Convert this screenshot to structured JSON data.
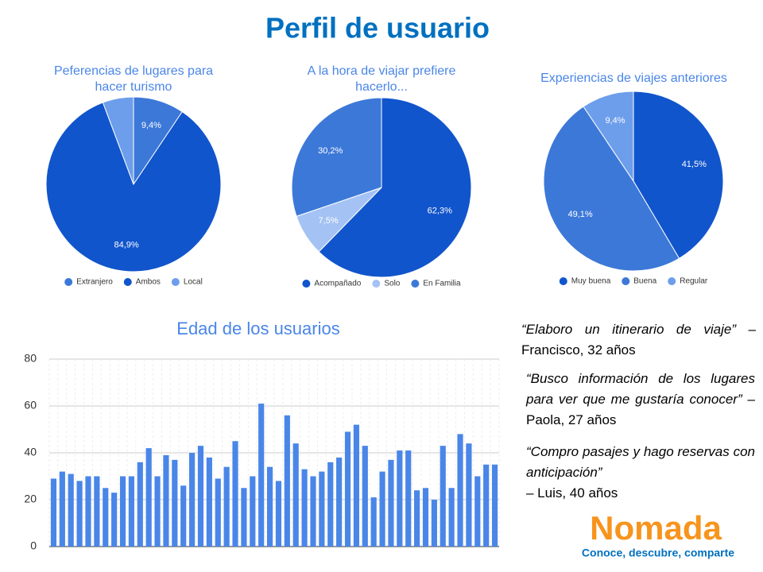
{
  "title": "Perfil de usuario",
  "chart_data": [
    {
      "type": "pie",
      "title": "Peferencias de lugares para hacer turismo",
      "categories": [
        "Extranjero",
        "Ambos",
        "Local"
      ],
      "values": [
        9.4,
        84.9,
        5.7
      ],
      "value_labels": [
        "9,4%",
        "84,9%",
        null
      ],
      "colors": [
        "#3c78d8",
        "#1155cc",
        "#6d9eeb"
      ]
    },
    {
      "type": "pie",
      "title": "A la hora de viajar prefiere hacerlo...",
      "categories": [
        "Acompañado",
        "Solo",
        "En Familia"
      ],
      "values": [
        62.3,
        7.5,
        30.2
      ],
      "value_labels": [
        "62,3%",
        "7,5%",
        "30,2%"
      ],
      "colors": [
        "#1155cc",
        "#a4c2f4",
        "#3c78d8"
      ]
    },
    {
      "type": "pie",
      "title": "Experiencias de viajes anteriores",
      "categories": [
        "Muy buena",
        "Buena",
        "Regular"
      ],
      "values": [
        41.5,
        49.1,
        9.4
      ],
      "value_labels": [
        "41,5%",
        "49,1%",
        "9,4%"
      ],
      "colors": [
        "#1155cc",
        "#3c78d8",
        "#6d9eeb"
      ]
    },
    {
      "type": "bar",
      "title": "Edad de los usuarios",
      "color": "#4a86e8",
      "values": [
        29,
        32,
        31,
        28,
        30,
        30,
        25,
        23,
        30,
        30,
        36,
        42,
        30,
        39,
        37,
        26,
        40,
        43,
        38,
        29,
        34,
        45,
        25,
        30,
        61,
        34,
        28,
        56,
        44,
        33,
        30,
        32,
        36,
        38,
        49,
        52,
        43,
        21,
        32,
        37,
        41,
        41,
        24,
        25,
        20,
        43,
        25,
        48,
        44,
        30,
        35,
        35
      ],
      "ylim": [
        0,
        80
      ],
      "yticks": [
        0,
        20,
        40,
        60,
        80
      ],
      "grid": true
    }
  ],
  "quotes": [
    {
      "quote": "“Elaboro un itinerario de  viaje”",
      "author": "– Francisco, 32 años"
    },
    {
      "quote": "“Busco información de los lugares para ver que me gustaría conocer”",
      "author": "– Paola, 27 años"
    },
    {
      "quote": "“Compro pasajes y hago reservas con anticipación”",
      "author": "– Luis, 40 años"
    }
  ],
  "logo": {
    "name": "Nomada",
    "tagline": "Conoce, descubre, comparte"
  }
}
